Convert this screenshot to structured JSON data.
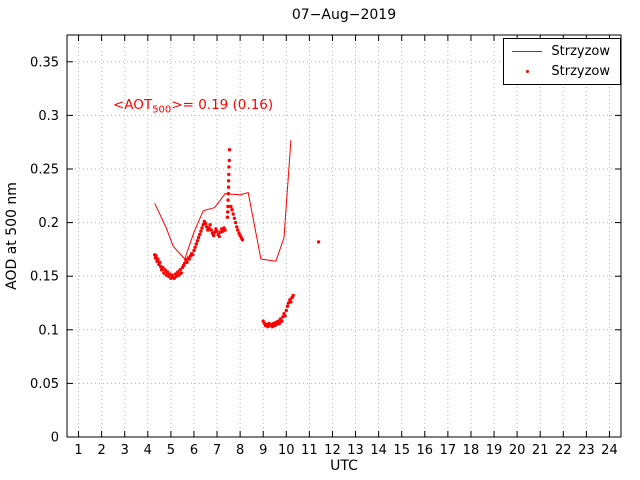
{
  "figure": {
    "background": "#ffffff",
    "accent_color": "#ff0000"
  },
  "chart_data": {
    "type": "line+scatter",
    "title": "07−Aug−2019",
    "xlabel": "UTC",
    "ylabel": "AOD at 500 nm",
    "xlim": [
      0.5,
      24.5
    ],
    "ylim": [
      0,
      0.375
    ],
    "xticks": [
      1,
      2,
      3,
      4,
      5,
      6,
      7,
      8,
      9,
      10,
      11,
      12,
      13,
      14,
      15,
      16,
      17,
      18,
      19,
      20,
      21,
      22,
      23,
      24
    ],
    "yticks": [
      0,
      0.05,
      0.1,
      0.15,
      0.2,
      0.25,
      0.3,
      0.35
    ],
    "ytick_labels": [
      "0",
      "0.05",
      "0.1",
      "0.15",
      "0.2",
      "0.25",
      "0.3",
      "0.35"
    ],
    "grid": true,
    "color": "#ff0000",
    "legend": {
      "position": "top-right",
      "entries": [
        {
          "label": "Strzyzow",
          "marker": "line"
        },
        {
          "label": "Strzyzow",
          "marker": "dot"
        }
      ]
    },
    "annotation": {
      "prefix": "<AOT",
      "sub": "500",
      "suffix": ">= 0.19 (0.16)",
      "color": "#ff0000"
    },
    "series": [
      {
        "name": "Strzyzow",
        "type": "line",
        "points": [
          [
            4.3,
            0.218
          ],
          [
            4.8,
            0.195
          ],
          [
            5.1,
            0.178
          ],
          [
            5.6,
            0.166
          ],
          [
            6.0,
            0.191
          ],
          [
            6.4,
            0.211
          ],
          [
            6.9,
            0.214
          ],
          [
            7.35,
            0.227
          ],
          [
            8.0,
            0.226
          ],
          [
            8.35,
            0.228
          ],
          [
            8.9,
            0.166
          ],
          [
            9.55,
            0.164
          ],
          [
            9.9,
            0.186
          ],
          [
            10.2,
            0.277
          ]
        ]
      },
      {
        "name": "Strzyzow",
        "type": "scatter",
        "points": [
          [
            4.3,
            0.17
          ],
          [
            4.33,
            0.167
          ],
          [
            4.36,
            0.169
          ],
          [
            4.4,
            0.164
          ],
          [
            4.44,
            0.166
          ],
          [
            4.48,
            0.161
          ],
          [
            4.52,
            0.163
          ],
          [
            4.56,
            0.159
          ],
          [
            4.6,
            0.156
          ],
          [
            4.65,
            0.158
          ],
          [
            4.7,
            0.153
          ],
          [
            4.75,
            0.156
          ],
          [
            4.8,
            0.151
          ],
          [
            4.85,
            0.154
          ],
          [
            4.9,
            0.15
          ],
          [
            4.95,
            0.152
          ],
          [
            5.0,
            0.148
          ],
          [
            5.05,
            0.151
          ],
          [
            5.1,
            0.149
          ],
          [
            5.15,
            0.148
          ],
          [
            5.2,
            0.152
          ],
          [
            5.25,
            0.15
          ],
          [
            5.3,
            0.154
          ],
          [
            5.35,
            0.151
          ],
          [
            5.4,
            0.156
          ],
          [
            5.45,
            0.153
          ],
          [
            5.5,
            0.158
          ],
          [
            5.55,
            0.16
          ],
          [
            5.6,
            0.162
          ],
          [
            5.65,
            0.165
          ],
          [
            5.7,
            0.163
          ],
          [
            5.75,
            0.167
          ],
          [
            5.8,
            0.166
          ],
          [
            5.85,
            0.169
          ],
          [
            5.9,
            0.171
          ],
          [
            5.95,
            0.17
          ],
          [
            6.0,
            0.174
          ],
          [
            6.05,
            0.177
          ],
          [
            6.1,
            0.18
          ],
          [
            6.15,
            0.183
          ],
          [
            6.2,
            0.186
          ],
          [
            6.25,
            0.189
          ],
          [
            6.3,
            0.192
          ],
          [
            6.35,
            0.195
          ],
          [
            6.4,
            0.198
          ],
          [
            6.45,
            0.201
          ],
          [
            6.5,
            0.199
          ],
          [
            6.55,
            0.196
          ],
          [
            6.6,
            0.193
          ],
          [
            6.65,
            0.195
          ],
          [
            6.7,
            0.198
          ],
          [
            6.75,
            0.193
          ],
          [
            6.8,
            0.19
          ],
          [
            6.85,
            0.188
          ],
          [
            6.9,
            0.191
          ],
          [
            6.95,
            0.194
          ],
          [
            7.0,
            0.192
          ],
          [
            7.05,
            0.189
          ],
          [
            7.1,
            0.187
          ],
          [
            7.15,
            0.191
          ],
          [
            7.2,
            0.194
          ],
          [
            7.25,
            0.192
          ],
          [
            7.3,
            0.195
          ],
          [
            7.35,
            0.193
          ],
          [
            7.45,
            0.205
          ],
          [
            7.46,
            0.21
          ],
          [
            7.47,
            0.215
          ],
          [
            7.48,
            0.221
          ],
          [
            7.49,
            0.227
          ],
          [
            7.5,
            0.233
          ],
          [
            7.5,
            0.239
          ],
          [
            7.51,
            0.245
          ],
          [
            7.52,
            0.252
          ],
          [
            7.53,
            0.258
          ],
          [
            7.54,
            0.268
          ],
          [
            7.6,
            0.215
          ],
          [
            7.65,
            0.212
          ],
          [
            7.7,
            0.208
          ],
          [
            7.75,
            0.204
          ],
          [
            7.8,
            0.2
          ],
          [
            7.85,
            0.196
          ],
          [
            7.9,
            0.193
          ],
          [
            7.95,
            0.19
          ],
          [
            8.0,
            0.188
          ],
          [
            8.05,
            0.186
          ],
          [
            8.1,
            0.184
          ],
          [
            9.0,
            0.108
          ],
          [
            9.05,
            0.106
          ],
          [
            9.1,
            0.104
          ],
          [
            9.15,
            0.105
          ],
          [
            9.2,
            0.103
          ],
          [
            9.25,
            0.106
          ],
          [
            9.3,
            0.104
          ],
          [
            9.35,
            0.105
          ],
          [
            9.4,
            0.103
          ],
          [
            9.45,
            0.106
          ],
          [
            9.5,
            0.104
          ],
          [
            9.55,
            0.107
          ],
          [
            9.6,
            0.105
          ],
          [
            9.65,
            0.108
          ],
          [
            9.7,
            0.106
          ],
          [
            9.75,
            0.11
          ],
          [
            9.8,
            0.108
          ],
          [
            9.85,
            0.112
          ],
          [
            9.9,
            0.115
          ],
          [
            9.95,
            0.113
          ],
          [
            10.0,
            0.118
          ],
          [
            10.05,
            0.122
          ],
          [
            10.1,
            0.125
          ],
          [
            10.15,
            0.128
          ],
          [
            10.2,
            0.126
          ],
          [
            10.25,
            0.13
          ],
          [
            10.3,
            0.132
          ],
          [
            11.4,
            0.182
          ]
        ]
      }
    ]
  }
}
